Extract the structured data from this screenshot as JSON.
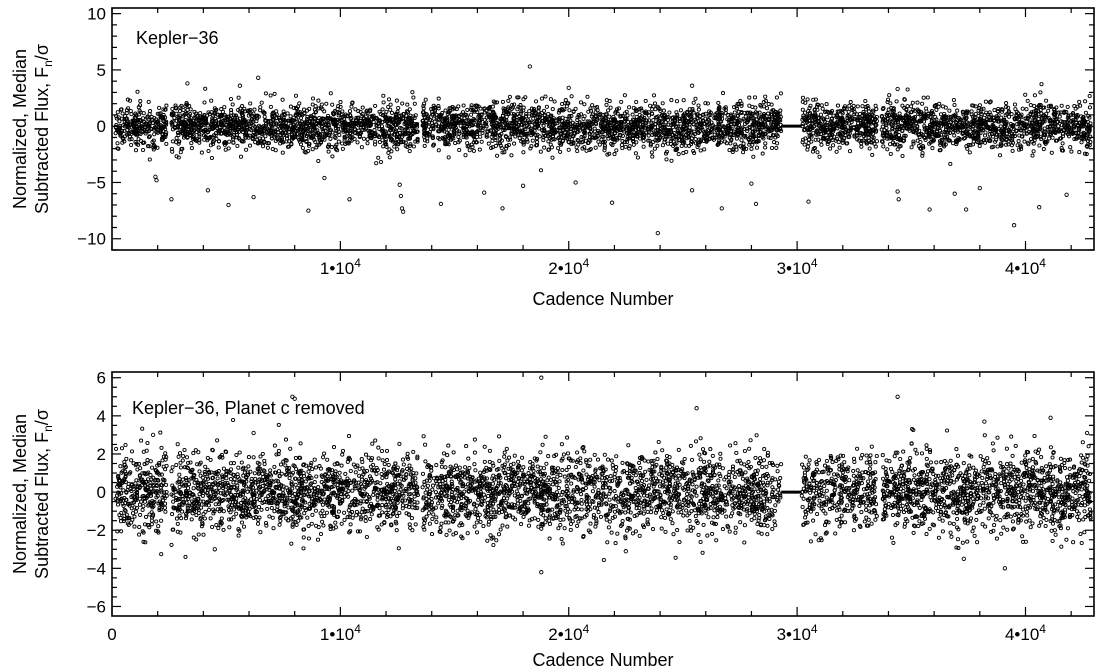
{
  "chart_data": [
    {
      "type": "scatter",
      "panel_label": "Kepler−36",
      "xlabel": "Cadence Number",
      "ylabel_line1": "Normalized, Median",
      "ylabel_line2": "Subtracted Flux, F",
      "ylabel_sub": "n",
      "ylabel_tail": "/σ",
      "xlim": [
        0,
        43000
      ],
      "ylim": [
        -11,
        10.5
      ],
      "x_ticks": [
        {
          "value": 10000,
          "mant": "1•10",
          "exp": "4"
        },
        {
          "value": 20000,
          "mant": "2•10",
          "exp": "4"
        },
        {
          "value": 30000,
          "mant": "3•10",
          "exp": "4"
        },
        {
          "value": 40000,
          "mant": "4•10",
          "exp": "4"
        }
      ],
      "y_ticks": [
        {
          "value": 10,
          "label": "10"
        },
        {
          "value": 5,
          "label": "5"
        },
        {
          "value": 0,
          "label": "0"
        },
        {
          "value": -5,
          "label": "−5"
        },
        {
          "value": -10,
          "label": "−10"
        }
      ],
      "data_gaps": [
        [
          2400,
          2600
        ],
        [
          13400,
          13600
        ],
        [
          29300,
          30200
        ],
        [
          33500,
          33700
        ]
      ],
      "scatter_sigma": 1.0,
      "outliers": [
        {
          "x": 3300,
          "y": 3.8
        },
        {
          "x": 5600,
          "y": 3.6
        },
        {
          "x": 6400,
          "y": 4.3
        },
        {
          "x": 18300,
          "y": 5.3
        },
        {
          "x": 20000,
          "y": 3.4
        },
        {
          "x": 25400,
          "y": 3.6
        },
        {
          "x": 34400,
          "y": 3.3
        },
        {
          "x": 1900,
          "y": -4.5
        },
        {
          "x": 1950,
          "y": -4.8
        },
        {
          "x": 2600,
          "y": -6.5
        },
        {
          "x": 4200,
          "y": -5.7
        },
        {
          "x": 5100,
          "y": -7.0
        },
        {
          "x": 6200,
          "y": -6.3
        },
        {
          "x": 8600,
          "y": -7.5
        },
        {
          "x": 9300,
          "y": -4.6
        },
        {
          "x": 10400,
          "y": -6.5
        },
        {
          "x": 12600,
          "y": -5.2
        },
        {
          "x": 12650,
          "y": -6.2
        },
        {
          "x": 12700,
          "y": -7.3
        },
        {
          "x": 12750,
          "y": -7.6
        },
        {
          "x": 14400,
          "y": -6.9
        },
        {
          "x": 16300,
          "y": -5.9
        },
        {
          "x": 17100,
          "y": -7.3
        },
        {
          "x": 18000,
          "y": -5.3
        },
        {
          "x": 20300,
          "y": -5.0
        },
        {
          "x": 21900,
          "y": -6.8
        },
        {
          "x": 23900,
          "y": -9.5
        },
        {
          "x": 25400,
          "y": -5.7
        },
        {
          "x": 26700,
          "y": -7.3
        },
        {
          "x": 28000,
          "y": -5.1
        },
        {
          "x": 28200,
          "y": -6.9
        },
        {
          "x": 30500,
          "y": -6.7
        },
        {
          "x": 34400,
          "y": -5.8
        },
        {
          "x": 34450,
          "y": -6.5
        },
        {
          "x": 35800,
          "y": -7.4
        },
        {
          "x": 36900,
          "y": -6.0
        },
        {
          "x": 37400,
          "y": -7.4
        },
        {
          "x": 38000,
          "y": -5.5
        },
        {
          "x": 39500,
          "y": -8.8
        },
        {
          "x": 40600,
          "y": -7.2
        },
        {
          "x": 41800,
          "y": -6.1
        }
      ]
    },
    {
      "type": "scatter",
      "panel_label": "Kepler−36, Planet c removed",
      "xlabel": "Cadence Number",
      "ylabel_line1": "Normalized, Median",
      "ylabel_line2": "Subtracted Flux, F",
      "ylabel_sub": "n",
      "ylabel_tail": "/σ",
      "xlim": [
        0,
        43000
      ],
      "ylim": [
        -6.5,
        6.3
      ],
      "x_ticks": [
        {
          "value": 0,
          "mant": "0",
          "exp": ""
        },
        {
          "value": 10000,
          "mant": "1•10",
          "exp": "4"
        },
        {
          "value": 20000,
          "mant": "2•10",
          "exp": "4"
        },
        {
          "value": 30000,
          "mant": "3•10",
          "exp": "4"
        },
        {
          "value": 40000,
          "mant": "4•10",
          "exp": "4"
        }
      ],
      "y_ticks": [
        {
          "value": 6,
          "label": "6"
        },
        {
          "value": 4,
          "label": "4"
        },
        {
          "value": 2,
          "label": "2"
        },
        {
          "value": 0,
          "label": "0"
        },
        {
          "value": -2,
          "label": "−2"
        },
        {
          "value": -4,
          "label": "−4"
        },
        {
          "value": -6,
          "label": "−6"
        }
      ],
      "data_gaps": [
        [
          2400,
          2600
        ],
        [
          13400,
          13600
        ],
        [
          29300,
          30200
        ],
        [
          33500,
          33700
        ]
      ],
      "scatter_sigma": 1.0,
      "outliers": [
        {
          "x": 1800,
          "y": 3.0
        },
        {
          "x": 6200,
          "y": 3.1
        },
        {
          "x": 7900,
          "y": 5.0
        },
        {
          "x": 8000,
          "y": 4.9
        },
        {
          "x": 18800,
          "y": 6.0
        },
        {
          "x": 25600,
          "y": 4.4
        },
        {
          "x": 34400,
          "y": 5.0
        },
        {
          "x": 38200,
          "y": 3.7
        },
        {
          "x": 41100,
          "y": 3.9
        },
        {
          "x": 42700,
          "y": 3.1
        },
        {
          "x": 18800,
          "y": -4.2
        },
        {
          "x": 37300,
          "y": -3.5
        },
        {
          "x": 39100,
          "y": -4.0
        },
        {
          "x": 4500,
          "y": -3.0
        },
        {
          "x": 22500,
          "y": -3.1
        }
      ]
    }
  ]
}
